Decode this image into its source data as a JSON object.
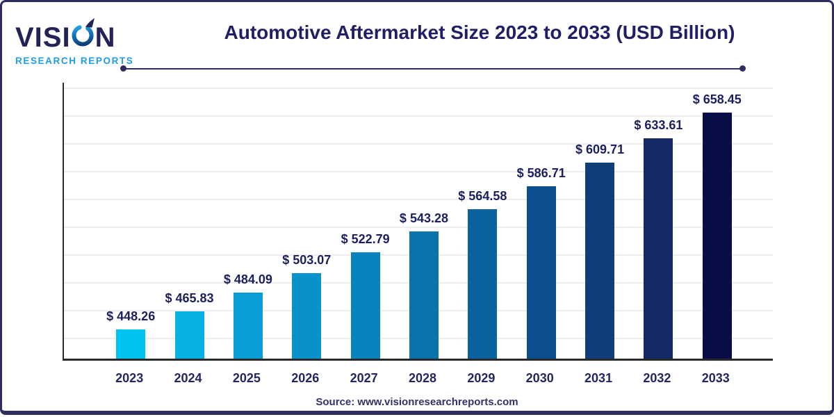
{
  "logo": {
    "line1": "VISION",
    "line1_pre": "VISI",
    "line1_post": "N",
    "line2": "RESEARCH REPORTS",
    "mark_icon": "water-drop-swirl-arrow"
  },
  "header": {
    "title": "Automotive Aftermarket Size 2023 to 2033 (USD Billion)"
  },
  "footer": {
    "source_text": "Source: www.visionresearchreports.com"
  },
  "chart_data": {
    "type": "bar",
    "title": "Automotive Aftermarket Size 2023 to 2033 (USD Billion)",
    "unit": "USD Billion",
    "categories": [
      "2023",
      "2024",
      "2025",
      "2026",
      "2027",
      "2028",
      "2029",
      "2030",
      "2031",
      "2032",
      "2033"
    ],
    "values": [
      448.26,
      465.83,
      484.09,
      503.07,
      522.79,
      543.28,
      564.58,
      586.71,
      609.71,
      633.61,
      658.45
    ],
    "value_labels": [
      "$ 448.26",
      "$ 465.83",
      "$ 484.09",
      "$ 503.07",
      "$ 522.79",
      "$ 543.28",
      "$ 564.58",
      "$ 586.71",
      "$ 609.71",
      "$ 633.61",
      "$ 658.45"
    ],
    "ylim": [
      420,
      688
    ],
    "grid": "horizontal-light",
    "legend": "none",
    "y_axis_tick_labels": "none",
    "bar_colors": [
      "#00C3F1",
      "#07B0E2",
      "#0B9ED6",
      "#0991CB",
      "#0983BD",
      "#0A73AC",
      "#0B629E",
      "#0D4F8E",
      "#123D7B",
      "#152A64",
      "#080D48"
    ]
  },
  "colors": {
    "title_text": "#201F66",
    "value_label_text": "#1B1F5E",
    "axis_line": "#2B2B2B",
    "gridline": "#EDEDED",
    "frame_border": "#2E2D62",
    "logo_primary": "#232358",
    "logo_secondary": "#1D9CE9",
    "source_text": "#31316B",
    "background": "#FFFFFF"
  }
}
